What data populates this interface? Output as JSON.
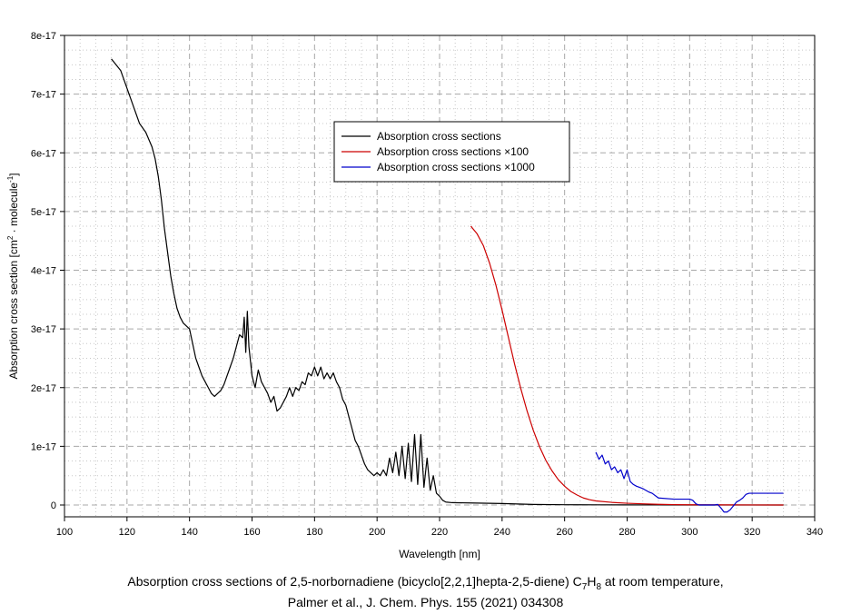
{
  "chart_data": {
    "type": "line",
    "xlabel": "Wavelength [nm]",
    "ylabel_main": "Absorption cross section [cm",
    "ylabel_sup1": "2",
    "ylabel_mid": " · molecule",
    "ylabel_sup2": "-1",
    "ylabel_end": "]",
    "xlim": [
      100,
      340
    ],
    "ylim": [
      -2e-18,
      8e-17
    ],
    "xticks": [
      100,
      120,
      140,
      160,
      180,
      200,
      220,
      240,
      260,
      280,
      300,
      320,
      340
    ],
    "xtick_labels": [
      "100",
      "120",
      "140",
      "160",
      "180",
      "200",
      "220",
      "240",
      "260",
      "280",
      "300",
      "320",
      "340"
    ],
    "yticks": [
      0,
      1e-17,
      2e-17,
      3e-17,
      4e-17,
      5e-17,
      6e-17,
      7e-17,
      8e-17
    ],
    "ytick_labels": [
      "0",
      "1e-17",
      "2e-17",
      "3e-17",
      "4e-17",
      "5e-17",
      "6e-17",
      "7e-17",
      "8e-17"
    ],
    "grid": true,
    "legend_position": "top-center",
    "series": [
      {
        "name": "Absorption cross sections",
        "color": "#000000",
        "x": [
          115,
          118,
          120,
          122,
          124,
          126,
          128,
          129,
          130,
          131,
          132,
          133,
          134,
          135,
          136,
          137,
          138,
          140,
          141,
          142,
          143,
          144,
          145,
          146,
          147,
          148,
          149,
          150,
          151,
          152,
          153,
          154,
          155,
          156,
          157,
          157.5,
          158,
          158.5,
          159,
          160,
          161,
          162,
          163,
          164,
          165,
          166,
          167,
          168,
          169,
          170,
          171,
          172,
          173,
          174,
          175,
          176,
          177,
          178,
          179,
          180,
          181,
          182,
          183,
          184,
          185,
          186,
          187,
          188,
          189,
          190,
          191,
          192,
          193,
          194,
          195,
          196,
          197,
          198,
          199,
          200,
          201,
          202,
          203,
          204,
          205,
          206,
          207,
          208,
          209,
          210,
          211,
          212,
          213,
          214,
          215,
          216,
          217,
          218,
          219,
          220,
          221,
          222,
          224,
          230,
          240,
          250,
          260,
          270,
          280,
          290,
          300,
          310,
          320,
          330
        ],
        "y": [
          7.6e-17,
          7.4e-17,
          7.1e-17,
          6.8e-17,
          6.5e-17,
          6.35e-17,
          6.1e-17,
          5.9e-17,
          5.6e-17,
          5.2e-17,
          4.7e-17,
          4.3e-17,
          3.9e-17,
          3.6e-17,
          3.35e-17,
          3.2e-17,
          3.1e-17,
          3e-17,
          2.75e-17,
          2.5e-17,
          2.35e-17,
          2.2e-17,
          2.1e-17,
          2e-17,
          1.9e-17,
          1.85e-17,
          1.9e-17,
          1.95e-17,
          2.05e-17,
          2.2e-17,
          2.35e-17,
          2.5e-17,
          2.7e-17,
          2.9e-17,
          2.85e-17,
          3.2e-17,
          2.6e-17,
          3.3e-17,
          2.7e-17,
          2.2e-17,
          2e-17,
          2.3e-17,
          2.1e-17,
          2e-17,
          1.9e-17,
          1.75e-17,
          1.85e-17,
          1.6e-17,
          1.65e-17,
          1.75e-17,
          1.85e-17,
          2e-17,
          1.85e-17,
          2e-17,
          1.95e-17,
          2.1e-17,
          2.05e-17,
          2.25e-17,
          2.2e-17,
          2.35e-17,
          2.2e-17,
          2.35e-17,
          2.15e-17,
          2.25e-17,
          2.15e-17,
          2.25e-17,
          2.1e-17,
          2e-17,
          1.8e-17,
          1.7e-17,
          1.5e-17,
          1.3e-17,
          1.1e-17,
          1e-17,
          8.5e-18,
          7e-18,
          6e-18,
          5.5e-18,
          5e-18,
          5.5e-18,
          5e-18,
          6e-18,
          5e-18,
          8e-18,
          5.5e-18,
          9e-18,
          5e-18,
          1e-17,
          4.5e-18,
          1.05e-17,
          4e-18,
          1.2e-17,
          3.5e-18,
          1.2e-17,
          3e-18,
          8e-18,
          2.5e-18,
          5e-18,
          2e-18,
          1.5e-18,
          8e-19,
          5e-19,
          4e-19,
          3.5e-19,
          2.5e-19,
          1e-19,
          5e-20,
          3e-20,
          2e-20,
          1e-20,
          5e-21,
          2e-21,
          1e-21,
          1e-21
        ]
      },
      {
        "name": "Absorption cross sections ×100",
        "color": "#cc0000",
        "x": [
          230,
          232,
          234,
          236,
          238,
          240,
          242,
          244,
          246,
          248,
          250,
          252,
          254,
          256,
          258,
          260,
          262,
          264,
          266,
          268,
          270,
          275,
          280,
          285,
          290,
          295,
          300,
          310,
          320,
          330
        ],
        "y": [
          4.75e-17,
          4.62e-17,
          4.42e-17,
          4.12e-17,
          3.75e-17,
          3.32e-17,
          2.86e-17,
          2.4e-17,
          1.98e-17,
          1.6e-17,
          1.27e-17,
          9.9e-18,
          7.6e-18,
          5.8e-18,
          4.3e-18,
          3.2e-18,
          2.3e-18,
          1.7e-18,
          1.2e-18,
          9e-19,
          7e-19,
          4.5e-19,
          3e-19,
          2e-19,
          1.2e-19,
          7e-20,
          4e-20,
          2e-20,
          1e-20,
          5e-21
        ]
      },
      {
        "name": "Absorption cross sections ×1000",
        "color": "#0000cc",
        "x": [
          270,
          271,
          272,
          273,
          274,
          275,
          276,
          277,
          278,
          279,
          280,
          281,
          282,
          283,
          284,
          285,
          286,
          287,
          288,
          290,
          295,
          300,
          301,
          302,
          303,
          304,
          305,
          308,
          309,
          310,
          311,
          312,
          313,
          315,
          316,
          317,
          318,
          319,
          320,
          325,
          330
        ],
        "y": [
          9e-18,
          7.8e-18,
          8.5e-18,
          7e-18,
          7.5e-18,
          6e-18,
          6.5e-18,
          5.5e-18,
          6e-18,
          4.5e-18,
          6e-18,
          4e-18,
          3.5e-18,
          3.2e-18,
          3e-18,
          2.8e-18,
          2.5e-18,
          2.2e-18,
          2e-18,
          1.2e-18,
          1e-18,
          1e-18,
          8e-19,
          2e-19,
          0.0,
          0.0,
          0.0,
          0.0,
          1e-19,
          -5e-19,
          -1.2e-18,
          -1.2e-18,
          -8e-19,
          5e-19,
          8e-19,
          1.2e-18,
          1.8e-18,
          2e-18,
          2e-18,
          2e-18,
          2e-18
        ]
      }
    ]
  },
  "caption": {
    "line1_pre": "Absorption cross sections of 2,5-norbornadiene (bicyclo[2,2,1]hepta-2,5-diene) C",
    "line1_sub1": "7",
    "line1_mid": "H",
    "line1_sub2": "8",
    "line1_post": " at room temperature,",
    "line2": "Palmer et al., J. Chem. Phys. 155 (2021) 034308"
  }
}
